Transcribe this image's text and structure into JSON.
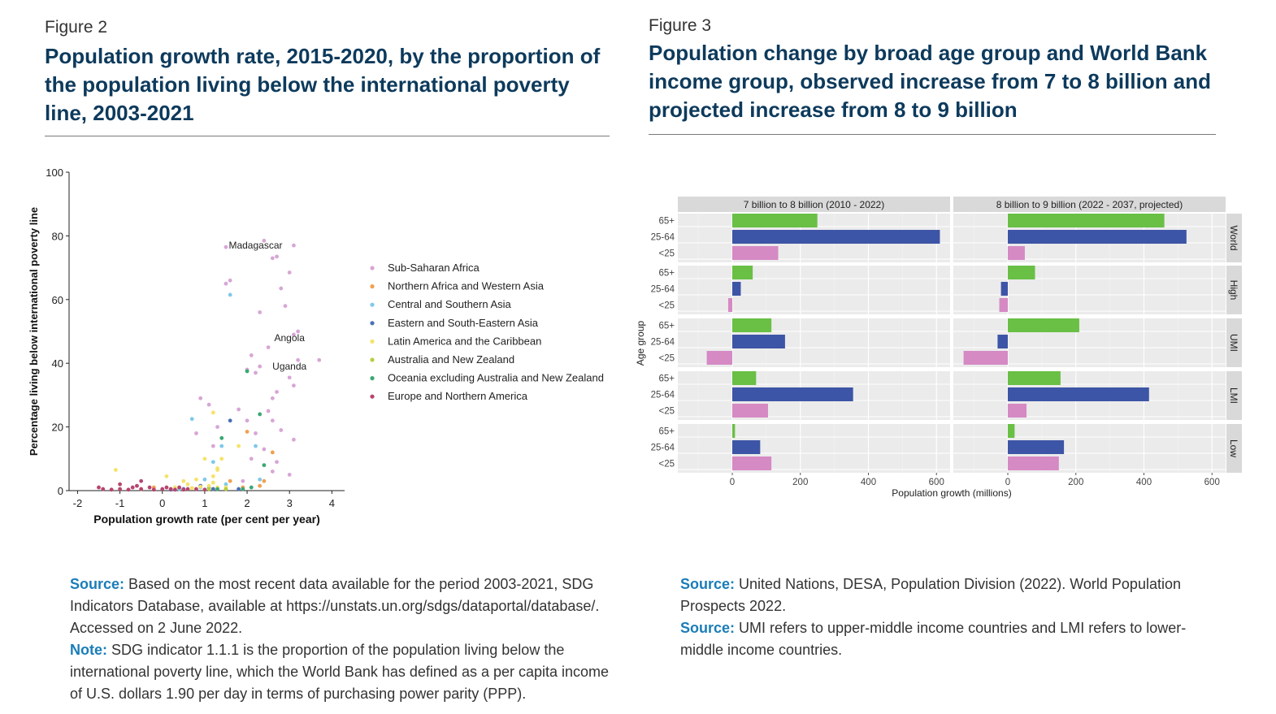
{
  "figure2": {
    "label": "Figure 2",
    "title": "Population growth rate, 2015-2020, by the proportion of the population living below the international poverty line, 2003-2021",
    "notes": [
      {
        "kw": "Source:",
        "text": " Based on the most recent data available for the period 2003-2021, SDG Indicators Database, available at https://unstats.un.org/sdgs/dataportal/database/. Accessed on 2 June 2022."
      },
      {
        "kw": "Note:",
        "text": " SDG indicator 1.1.1 is the proportion of the population living below the international poverty line, which the World Bank has defined as a per capita income of U.S. dollars 1.90 per day in terms of purchasing power parity (PPP)."
      }
    ]
  },
  "figure3": {
    "label": "Figure 3",
    "title": "Population change by broad age group and World Bank income group, observed increase from 7 to 8 billion and projected increase from 8 to 9 billion",
    "notes": [
      {
        "kw": "Source:",
        "text": " United Nations, DESA, Population Division (2022). World Population Prospects 2022."
      },
      {
        "kw": "Source:",
        "text": " UMI refers to upper-middle income countries and LMI refers to lower-middle income countries."
      }
    ]
  },
  "chart_data": [
    {
      "type": "scatter",
      "xlabel": "Population growth rate (per cent per year)",
      "ylabel": "Percentage living below international poverty line",
      "xlim": [
        -2.2,
        4.3
      ],
      "ylim": [
        0,
        100
      ],
      "xticks": [
        -2,
        -1,
        0,
        1,
        2,
        3,
        4
      ],
      "yticks": [
        0,
        20,
        40,
        60,
        80,
        100
      ],
      "grid": false,
      "legend_position": "right",
      "annotations": [
        {
          "text": "Madagascar",
          "x": 2.2,
          "y": 76
        },
        {
          "text": "Angola",
          "x": 3.0,
          "y": 47
        },
        {
          "text": "Uganda",
          "x": 3.0,
          "y": 38
        }
      ],
      "series": [
        {
          "name": "Sub-Saharan Africa",
          "color": "#d7a6d6",
          "points": [
            [
              1.5,
              76.5
            ],
            [
              2.4,
              78.5
            ],
            [
              3.1,
              77
            ],
            [
              2.6,
              73
            ],
            [
              2.7,
              73.5
            ],
            [
              1.6,
              66
            ],
            [
              1.5,
              65
            ],
            [
              3.0,
              68.5
            ],
            [
              2.8,
              63.5
            ],
            [
              2.9,
              58
            ],
            [
              2.3,
              56
            ],
            [
              3.1,
              49
            ],
            [
              3.2,
              50
            ],
            [
              2.5,
              45
            ],
            [
              2.1,
              42.5
            ],
            [
              2.3,
              39
            ],
            [
              2.2,
              37
            ],
            [
              3.0,
              35.5
            ],
            [
              2.0,
              38
            ],
            [
              3.2,
              41
            ],
            [
              3.7,
              41
            ],
            [
              3.1,
              33
            ],
            [
              2.7,
              31
            ],
            [
              2.6,
              29
            ],
            [
              0.9,
              29
            ],
            [
              1.1,
              27
            ],
            [
              2.5,
              25
            ],
            [
              2.8,
              19
            ],
            [
              2.6,
              22
            ],
            [
              3.1,
              16
            ],
            [
              1.8,
              25.5
            ],
            [
              1.3,
              20
            ],
            [
              2.0,
              22
            ],
            [
              2.2,
              18
            ],
            [
              0.8,
              18
            ],
            [
              1.2,
              14
            ],
            [
              2.4,
              13
            ],
            [
              2.7,
              9
            ],
            [
              2.6,
              6
            ],
            [
              3.0,
              5
            ],
            [
              2.1,
              10
            ],
            [
              1.9,
              3
            ]
          ]
        },
        {
          "name": "Northern Africa and Western Asia",
          "color": "#f0a050",
          "points": [
            [
              2.0,
              18.5
            ],
            [
              2.6,
              12
            ],
            [
              1.9,
              1
            ],
            [
              2.3,
              1.5
            ],
            [
              1.6,
              3
            ],
            [
              0.7,
              0.8
            ],
            [
              -0.2,
              1
            ],
            [
              0.4,
              0.5
            ],
            [
              1.2,
              0.5
            ],
            [
              2.4,
              3
            ]
          ]
        },
        {
          "name": "Central and Southern Asia",
          "color": "#80c8ea",
          "points": [
            [
              1.6,
              61.5
            ],
            [
              0.7,
              22.5
            ],
            [
              1.4,
              14
            ],
            [
              2.2,
              14
            ],
            [
              1.2,
              9
            ],
            [
              1.0,
              3.5
            ],
            [
              1.5,
              2
            ],
            [
              0.9,
              1
            ],
            [
              2.3,
              3.5
            ],
            [
              0.4,
              0.5
            ]
          ]
        },
        {
          "name": "Eastern and South-Eastern Asia",
          "color": "#4b6fb8",
          "points": [
            [
              1.6,
              22
            ],
            [
              0.9,
              1.5
            ],
            [
              0.5,
              0.5
            ],
            [
              0.2,
              0.3
            ],
            [
              1.2,
              0.5
            ],
            [
              1.8,
              0.5
            ],
            [
              1.1,
              0.8
            ]
          ]
        },
        {
          "name": "Latin America and the Caribbean",
          "color": "#f4e36a",
          "points": [
            [
              -1.1,
              6.5
            ],
            [
              0.1,
              4.5
            ],
            [
              1.2,
              24.5
            ],
            [
              1.0,
              10
            ],
            [
              1.4,
              10
            ],
            [
              1.8,
              14
            ],
            [
              0.8,
              3.5
            ],
            [
              1.3,
              6.5
            ],
            [
              1.2,
              4.5
            ],
            [
              0.3,
              1
            ],
            [
              0.5,
              3
            ],
            [
              0.6,
              2
            ],
            [
              0.9,
              1.2
            ],
            [
              1.1,
              1.5
            ],
            [
              1.5,
              1
            ],
            [
              0.7,
              0.8
            ],
            [
              1.3,
              1
            ],
            [
              1.2,
              2.5
            ],
            [
              1.3,
              7
            ],
            [
              -0.5,
              0.5
            ]
          ]
        },
        {
          "name": "Australia and New Zealand",
          "color": "#b6cf3e",
          "points": [
            [
              1.1,
              0.5
            ],
            [
              1.5,
              0.5
            ]
          ]
        },
        {
          "name": "Oceania excluding Australia and New Zealand",
          "color": "#3aa872",
          "points": [
            [
              2.0,
              37.5
            ],
            [
              2.3,
              24
            ],
            [
              2.4,
              8
            ],
            [
              1.9,
              0.5
            ],
            [
              1.3,
              0.5
            ],
            [
              2.1,
              1
            ],
            [
              1.4,
              16.5
            ]
          ]
        },
        {
          "name": "Europe and Northern America",
          "color": "#b5456e",
          "points": [
            [
              -1.5,
              1
            ],
            [
              -1.4,
              0.5
            ],
            [
              -1.0,
              2
            ],
            [
              -1.0,
              0.5
            ],
            [
              -0.7,
              1
            ],
            [
              -0.5,
              3
            ],
            [
              -0.5,
              0.5
            ],
            [
              -0.3,
              1
            ],
            [
              -0.2,
              0.3
            ],
            [
              0.0,
              0.5
            ],
            [
              0.1,
              1
            ],
            [
              0.2,
              0.5
            ],
            [
              0.3,
              0.3
            ],
            [
              0.4,
              1
            ],
            [
              0.5,
              0.3
            ],
            [
              0.6,
              0.5
            ],
            [
              0.8,
              0.5
            ],
            [
              1.0,
              0.3
            ],
            [
              -0.8,
              0.3
            ],
            [
              -1.2,
              0.3
            ],
            [
              -0.6,
              1.5
            ]
          ]
        }
      ]
    },
    {
      "type": "bar",
      "orientation": "horizontal",
      "xlabel": "Population growth (millions)",
      "ylabel": "Age group",
      "xlim": [
        -160,
        640
      ],
      "xticks": [
        0,
        200,
        400,
        600
      ],
      "age_groups": [
        "65+",
        "25-64",
        "<25"
      ],
      "colors": {
        "65+": "#6abf45",
        "25-64": "#3d55a6",
        "<25": "#d58ac4"
      },
      "panels": [
        {
          "title": "7 billion to 8 billion (2010 - 2022)",
          "rows": [
            {
              "group": "World",
              "values": [
                250,
                610,
                135
              ]
            },
            {
              "group": "High",
              "values": [
                60,
                25,
                -12
              ]
            },
            {
              "group": "UMI",
              "values": [
                115,
                155,
                -75
              ]
            },
            {
              "group": "LMI",
              "values": [
                70,
                355,
                105
              ]
            },
            {
              "group": "Low",
              "values": [
                8,
                82,
                115
              ]
            }
          ]
        },
        {
          "title": "8 billion to 9 billion (2022 - 2037, projected)",
          "rows": [
            {
              "group": "World",
              "values": [
                460,
                525,
                50
              ]
            },
            {
              "group": "High",
              "values": [
                80,
                -20,
                -25
              ]
            },
            {
              "group": "UMI",
              "values": [
                210,
                -30,
                -130
              ]
            },
            {
              "group": "LMI",
              "values": [
                155,
                415,
                55
              ]
            },
            {
              "group": "Low",
              "values": [
                20,
                165,
                150
              ]
            }
          ]
        }
      ]
    }
  ]
}
